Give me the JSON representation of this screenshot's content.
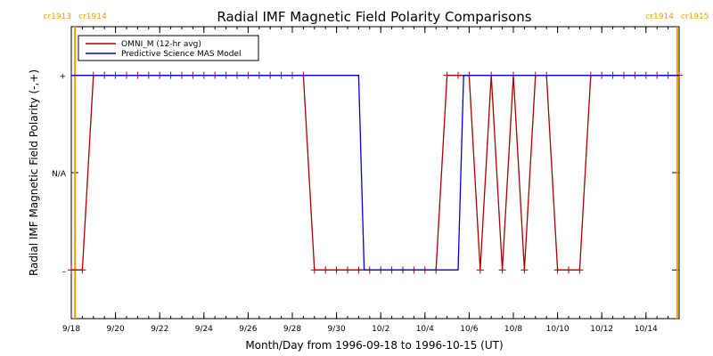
{
  "chart_data": {
    "type": "line",
    "title": "Radial IMF Magnetic Field Polarity Comparisons",
    "xlabel": "Month/Day from 1996-09-18 to 1996-10-15 (UT)",
    "ylabel": "Radial IMF Magnetic Field Polarity (-,+)",
    "xlim": [
      "1996-09-18T00:00",
      "1996-10-15T12:00"
    ],
    "ylim": [
      -1.5,
      1.5
    ],
    "x_ticks": [
      {
        "date": "1996-09-18",
        "label": "9/18"
      },
      {
        "date": "1996-09-20",
        "label": "9/20"
      },
      {
        "date": "1996-09-22",
        "label": "9/22"
      },
      {
        "date": "1996-09-24",
        "label": "9/24"
      },
      {
        "date": "1996-09-26",
        "label": "9/26"
      },
      {
        "date": "1996-09-28",
        "label": "9/28"
      },
      {
        "date": "1996-09-30",
        "label": "9/30"
      },
      {
        "date": "1996-10-02",
        "label": "10/2"
      },
      {
        "date": "1996-10-04",
        "label": "10/4"
      },
      {
        "date": "1996-10-06",
        "label": "10/6"
      },
      {
        "date": "1996-10-08",
        "label": "10/8"
      },
      {
        "date": "1996-10-10",
        "label": "10/10"
      },
      {
        "date": "1996-10-12",
        "label": "10/12"
      },
      {
        "date": "1996-10-14",
        "label": "10/14"
      }
    ],
    "y_ticks": [
      {
        "value": 1,
        "label": "+"
      },
      {
        "value": 0,
        "label": "N/A"
      },
      {
        "value": -1,
        "label": "–"
      }
    ],
    "carrington_markers": [
      {
        "date": "1996-09-18T04:00",
        "label_left": "cr1913",
        "label_right": "cr1914",
        "color": "#ff9900"
      },
      {
        "date": "1996-10-15T10:00",
        "label_left": "cr1914",
        "label_right": "cr1915",
        "color": "#ff9900"
      }
    ],
    "legend_position": "top-left",
    "series": [
      {
        "name": "OMNI_M (12-hr avg)",
        "color": "#aa0000",
        "markers": true,
        "points": [
          [
            "1996-09-18T00:00",
            -1
          ],
          [
            "1996-09-18T12:00",
            -1
          ],
          [
            "1996-09-19T00:00",
            1
          ],
          [
            "1996-09-19T12:00",
            1
          ],
          [
            "1996-09-20T00:00",
            1
          ],
          [
            "1996-09-20T12:00",
            1
          ],
          [
            "1996-09-21T00:00",
            1
          ],
          [
            "1996-09-21T12:00",
            1
          ],
          [
            "1996-09-22T00:00",
            1
          ],
          [
            "1996-09-22T12:00",
            1
          ],
          [
            "1996-09-23T00:00",
            1
          ],
          [
            "1996-09-23T12:00",
            1
          ],
          [
            "1996-09-24T00:00",
            1
          ],
          [
            "1996-09-24T12:00",
            1
          ],
          [
            "1996-09-25T00:00",
            1
          ],
          [
            "1996-09-25T12:00",
            1
          ],
          [
            "1996-09-26T00:00",
            1
          ],
          [
            "1996-09-26T12:00",
            1
          ],
          [
            "1996-09-27T00:00",
            1
          ],
          [
            "1996-09-27T12:00",
            1
          ],
          [
            "1996-09-28T00:00",
            1
          ],
          [
            "1996-09-28T12:00",
            1
          ],
          [
            "1996-09-29T00:00",
            -1
          ],
          [
            "1996-09-29T12:00",
            -1
          ],
          [
            "1996-09-30T00:00",
            -1
          ],
          [
            "1996-09-30T12:00",
            -1
          ],
          [
            "1996-10-01T00:00",
            -1
          ],
          [
            "1996-10-01T12:00",
            -1
          ],
          [
            "1996-10-02T00:00",
            -1
          ],
          [
            "1996-10-02T12:00",
            -1
          ],
          [
            "1996-10-03T00:00",
            -1
          ],
          [
            "1996-10-03T12:00",
            -1
          ],
          [
            "1996-10-04T00:00",
            -1
          ],
          [
            "1996-10-04T12:00",
            -1
          ],
          [
            "1996-10-05T00:00",
            1
          ],
          [
            "1996-10-05T12:00",
            1
          ],
          [
            "1996-10-06T00:00",
            1
          ],
          [
            "1996-10-06T12:00",
            -1
          ],
          [
            "1996-10-07T00:00",
            1
          ],
          [
            "1996-10-07T12:00",
            -1
          ],
          [
            "1996-10-08T00:00",
            1
          ],
          [
            "1996-10-08T12:00",
            -1
          ],
          [
            "1996-10-09T00:00",
            1
          ],
          [
            "1996-10-09T12:00",
            1
          ],
          [
            "1996-10-10T00:00",
            -1
          ],
          [
            "1996-10-10T12:00",
            -1
          ],
          [
            "1996-10-11T00:00",
            -1
          ],
          [
            "1996-10-11T12:00",
            1
          ],
          [
            "1996-10-12T00:00",
            1
          ],
          [
            "1996-10-12T12:00",
            1
          ],
          [
            "1996-10-13T00:00",
            1
          ],
          [
            "1996-10-13T12:00",
            1
          ],
          [
            "1996-10-14T00:00",
            1
          ],
          [
            "1996-10-14T12:00",
            1
          ],
          [
            "1996-10-15T00:00",
            1
          ],
          [
            "1996-10-15T12:00",
            1
          ]
        ]
      },
      {
        "name": "Predictive Science MAS Model",
        "color": "#0000dd",
        "markers": false,
        "points": [
          [
            "1996-09-18T00:00",
            1
          ],
          [
            "1996-10-01T00:00",
            1
          ],
          [
            "1996-10-01T06:00",
            -1
          ],
          [
            "1996-10-05T12:00",
            -1
          ],
          [
            "1996-10-05T18:00",
            1
          ],
          [
            "1996-10-15T12:00",
            1
          ]
        ]
      }
    ]
  }
}
